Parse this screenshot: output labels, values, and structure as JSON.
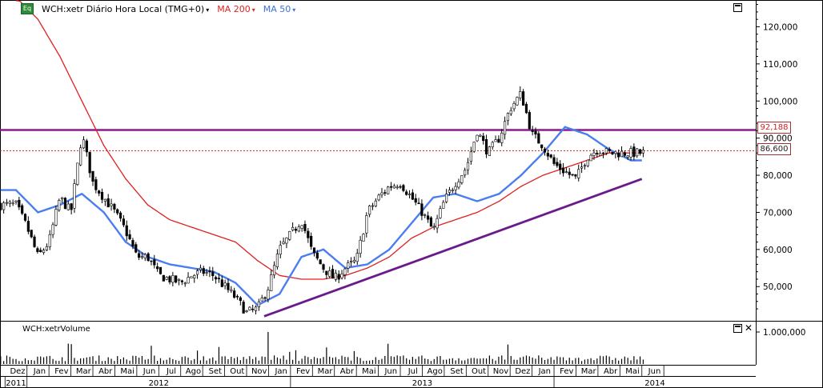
{
  "legend": {
    "badge": "Eq",
    "ticker": "WCH:xetr Diário Hora Local (TMG+0)",
    "ma200": "MA 200",
    "ma50": "MA 50",
    "caret": "▾"
  },
  "volume_legend": "WCH:xetrVolume",
  "price_tags": {
    "resistance": "92,188",
    "last": "86,600"
  },
  "colors": {
    "ma200": "#e02020",
    "ma50": "#4a7ef0",
    "purple": "#8b1a8b",
    "trend": "#6a1a8a",
    "candle_up": "#ffffff",
    "candle_down": "#000000"
  },
  "chart_data": [
    {
      "type": "line",
      "title": "WCH:xetr Diário Hora Local (TMG+0)",
      "y_ticks": [
        "120,000",
        "110,000",
        "100,000",
        "90,000",
        "80,000",
        "70,000",
        "60,000",
        "50,000"
      ],
      "y_tick_values": [
        120,
        110,
        100,
        90,
        80,
        70,
        60,
        50
      ],
      "ylim": [
        41,
        127
      ],
      "x_months": [
        "Dez",
        "Jan",
        "Fev",
        "Mar",
        "Abr",
        "Mai",
        "Jun",
        "Jul",
        "Ago",
        "Set",
        "Out",
        "Nov",
        "Jan",
        "Fev",
        "Mar",
        "Abr",
        "Mai",
        "Jun",
        "Jul",
        "Ago",
        "Set",
        "Out",
        "Nov",
        "Dez",
        "Jan",
        "Fev",
        "Mar",
        "Abr",
        "Mai",
        "Jun"
      ],
      "x_years": [
        "2011",
        "2012",
        "2013",
        "2014"
      ],
      "price_series": {
        "name": "WCH:xetr",
        "t": [
          0,
          0.5,
          1,
          1.5,
          2,
          2.5,
          3,
          3.5,
          4,
          4.5,
          5,
          5.5,
          6,
          6.5,
          7,
          7.5,
          8,
          8.5,
          9,
          9.5,
          10,
          10.5,
          11,
          11.5,
          12,
          12.5,
          13,
          13.5,
          14,
          14.5,
          15,
          15.5,
          16,
          16.5,
          17,
          17.5,
          18,
          18.5,
          19,
          19.5,
          20,
          20.5,
          21,
          21.5,
          22,
          22.5,
          23,
          23.5,
          24,
          24.5,
          25,
          25.5,
          26,
          26.5,
          27,
          27.5,
          28,
          28.5,
          29
        ],
        "values": [
          72,
          66,
          58,
          62,
          74,
          70,
          91,
          78,
          74,
          70,
          65,
          58,
          58,
          53,
          52,
          51,
          53,
          54,
          53,
          50,
          47,
          43,
          44,
          50,
          60,
          64,
          68,
          59,
          55,
          52,
          55,
          57,
          70,
          74,
          77,
          78,
          74,
          70,
          65,
          73,
          78,
          82,
          92,
          86,
          90,
          98,
          102,
          91,
          88,
          83,
          81,
          79,
          85,
          87,
          86,
          86,
          86,
          86,
          86
        ]
      },
      "ma200": {
        "name": "MA 200",
        "t": [
          0,
          1,
          2,
          3,
          4,
          5,
          6,
          7,
          8,
          9,
          10,
          11,
          12,
          13,
          14,
          15,
          16,
          17,
          18,
          19,
          20,
          21,
          22,
          23,
          24,
          25,
          26,
          27,
          28,
          29
        ],
        "values": [
          128,
          122,
          112,
          100,
          88,
          79,
          72,
          68,
          66,
          64,
          62,
          57,
          53,
          52,
          52,
          53,
          55,
          58,
          63,
          66,
          68,
          70,
          73,
          77,
          80,
          82,
          84,
          86,
          86,
          86
        ]
      },
      "ma50": {
        "name": "MA 50",
        "t": [
          0,
          1,
          2,
          3,
          4,
          5,
          6,
          7,
          8,
          9,
          10,
          11,
          12,
          13,
          14,
          15,
          16,
          17,
          18,
          19,
          20,
          21,
          22,
          23,
          24,
          25,
          26,
          27,
          28,
          29
        ],
        "values": [
          76,
          70,
          72,
          75,
          70,
          62,
          58,
          56,
          55,
          54,
          51,
          45,
          48,
          58,
          60,
          55,
          56,
          60,
          67,
          74,
          75,
          73,
          75,
          80,
          86,
          93,
          91,
          87,
          84,
          84
        ]
      },
      "resistance": 92.188,
      "last_price": 86.6,
      "trendline": {
        "from": [
          11.3,
          42
        ],
        "to": [
          28.5,
          79
        ]
      }
    },
    {
      "type": "bar",
      "title": "WCH:xetrVolume",
      "y_ticks": [
        "1.000,000"
      ],
      "y_tick_values": [
        1000000
      ],
      "ylim": [
        0,
        1100000
      ]
    }
  ]
}
